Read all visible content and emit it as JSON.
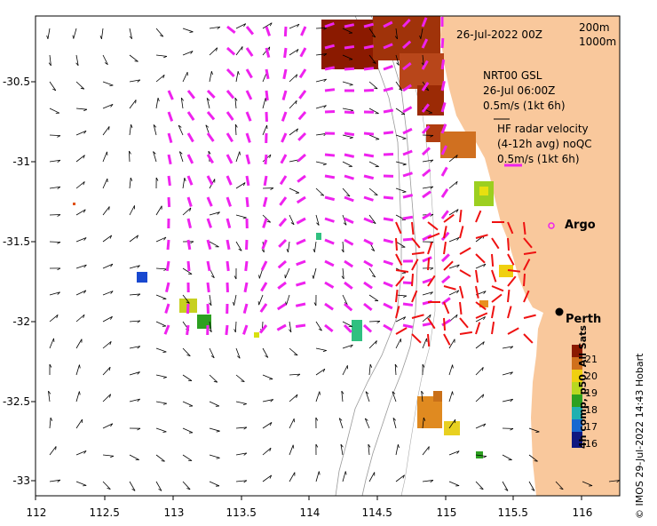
{
  "map": {
    "date_label": "26-Jul-2022 00Z",
    "isobath_labels": [
      "200m",
      "1000m"
    ],
    "nrt": {
      "line1": "NRT00 GSL",
      "line2": "26-Jul 06:00Z",
      "line3": "0.5m/s (1kt 6h)"
    },
    "radar": {
      "line1": "HF radar velocity",
      "line2": "(4-12h avg) noQC",
      "line3": "0.5m/s (1kt 6h)"
    },
    "places": {
      "argo": "Argo",
      "perth": "Perth"
    },
    "x_ticks": [
      "112",
      "112.5",
      "113",
      "113.5",
      "114",
      "114.5",
      "115",
      "115.5",
      "116"
    ],
    "y_ticks": [
      "-30.5",
      "-31",
      "-31.5",
      "-32",
      "-32.5",
      "-33"
    ],
    "colorbar": {
      "title": "4h comp, p50, All Sats",
      "ticks": [
        "21",
        "20",
        "19",
        "18",
        "17",
        "16"
      ]
    },
    "credit": "© IMOS 29-Jul-2022 14:43 Hobart",
    "colors": {
      "land": "#f9c89c",
      "radar_vectors": "#ee22ee",
      "argo_vectors": "#ee1111",
      "sst_warm": "#8b1a00"
    }
  }
}
